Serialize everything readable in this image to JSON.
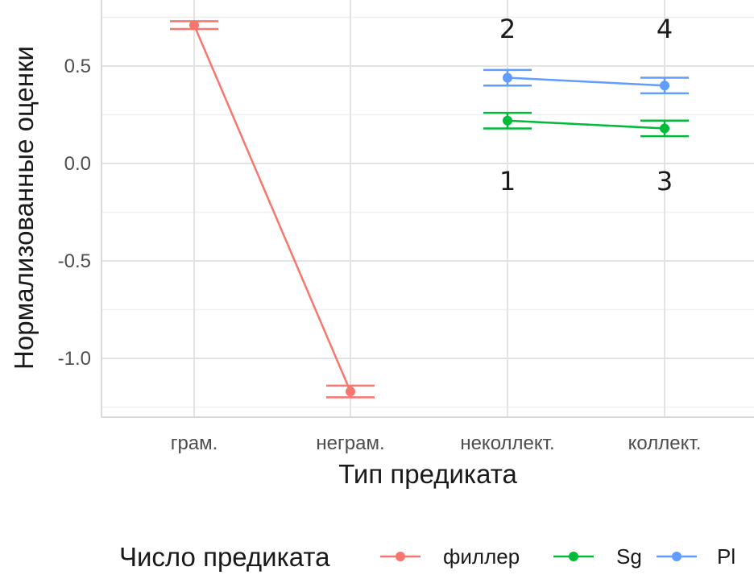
{
  "chart_data": {
    "type": "line",
    "categories": [
      "грам.",
      "неграм.",
      "неколлект.",
      "коллект."
    ],
    "y_ticks": [
      "0.5",
      "0.0",
      "-0.5",
      "-1.0"
    ],
    "y_tick_values": [
      0.5,
      0.0,
      -0.5,
      -1.0
    ],
    "ylim": [
      -1.3,
      0.8
    ],
    "xlabel": "Тип предиката",
    "ylabel": "Нормализованные оценки",
    "grid": true,
    "legend": {
      "title": "Число предиката",
      "position": "bottom"
    },
    "series": [
      {
        "name": "филлер",
        "color": "#f8766d",
        "points": [
          {
            "category": "грам.",
            "y": 0.71,
            "err": 0.02
          },
          {
            "category": "неграм.",
            "y": -1.17,
            "err": 0.03
          }
        ]
      },
      {
        "name": "Sg",
        "color": "#00ba38",
        "points": [
          {
            "category": "неколлект.",
            "y": 0.22,
            "err": 0.04
          },
          {
            "category": "коллект.",
            "y": 0.18,
            "err": 0.04
          }
        ]
      },
      {
        "name": "Pl",
        "color": "#619cff",
        "points": [
          {
            "category": "неколлект.",
            "y": 0.44,
            "err": 0.04
          },
          {
            "category": "коллект.",
            "y": 0.4,
            "err": 0.04
          }
        ]
      }
    ],
    "annotations": [
      {
        "text": "2",
        "category": "неколлект.",
        "y": 0.69
      },
      {
        "text": "4",
        "category": "коллект.",
        "y": 0.69
      },
      {
        "text": "1",
        "category": "неколлект.",
        "y": -0.09
      },
      {
        "text": "3",
        "category": "коллект.",
        "y": -0.09
      }
    ]
  }
}
